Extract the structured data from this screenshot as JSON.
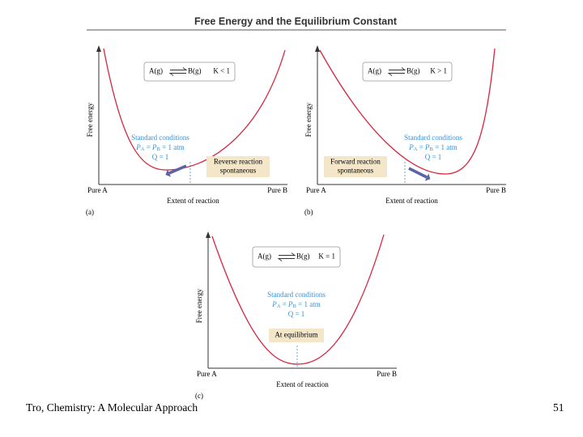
{
  "header": {
    "title": "Free Energy and the Equilibrium Constant"
  },
  "panels": [
    {
      "label": "(a)",
      "y_axis": "Free energy",
      "x_axis": "Extent of reaction",
      "left_end": "Pure A",
      "right_end": "Pure B",
      "reactant": "A(g)",
      "product": "B(g)",
      "condition": "K < 1",
      "standard": "Standard conditions",
      "pressure": [
        {
          "t": "P"
        },
        {
          "sub": "A"
        },
        {
          "t": " = "
        },
        {
          "t": "P"
        },
        {
          "sub": "B"
        },
        {
          "t": " = 1 atm"
        }
      ],
      "quotient": "Q = 1",
      "note": [
        "Reverse reaction",
        "spontaneous"
      ]
    },
    {
      "label": "(b)",
      "y_axis": "Free energy",
      "x_axis": "Extent of reaction",
      "left_end": "Pure A",
      "right_end": "Pure B",
      "reactant": "A(g)",
      "product": "B(g)",
      "condition": "K > 1",
      "standard": "Standard conditions",
      "pressure": [
        {
          "t": "P"
        },
        {
          "sub": "A"
        },
        {
          "t": " = "
        },
        {
          "t": "P"
        },
        {
          "sub": "B"
        },
        {
          "t": " = 1 atm"
        }
      ],
      "quotient": "Q = 1",
      "note": [
        "Forward reaction",
        "spontaneous"
      ]
    },
    {
      "label": "(c)",
      "y_axis": "Free energy",
      "x_axis": "Extent of reaction",
      "left_end": "Pure A",
      "right_end": "Pure B",
      "reactant": "A(g)",
      "product": "B(g)",
      "condition": "K = 1",
      "standard": "Standard conditions",
      "pressure": [
        {
          "t": "P"
        },
        {
          "sub": "A"
        },
        {
          "t": " = "
        },
        {
          "t": "P"
        },
        {
          "sub": "B"
        },
        {
          "t": " = 1 atm"
        }
      ],
      "quotient": "Q = 1",
      "note": [
        "At equilibrium"
      ]
    }
  ],
  "footer": {
    "citation": "Tro, Chemistry: A Molecular Approach",
    "page": "51"
  }
}
